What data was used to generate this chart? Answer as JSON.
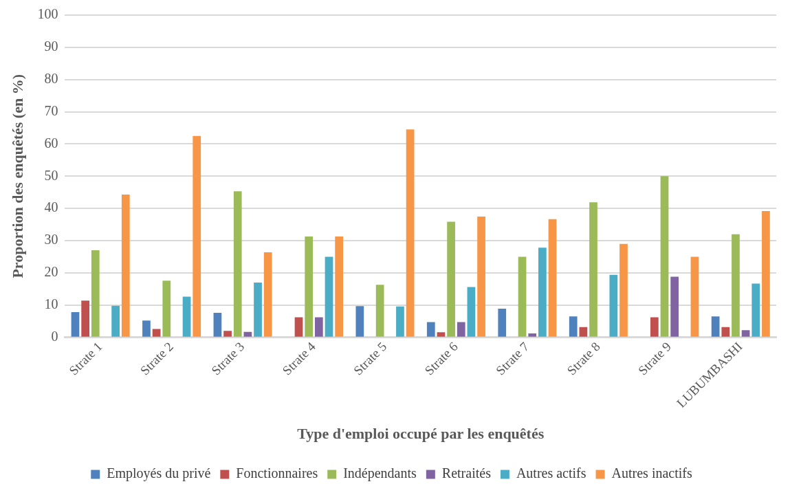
{
  "chart_data": {
    "type": "bar",
    "xlabel": "Type d'emploi occupé par les enquêtés",
    "ylabel": "Proportion des enquêtés (en %)",
    "categories": [
      "Strate 1",
      "Strate 2",
      "Strate 3",
      "Strate 4",
      "Strate 5",
      "Strate 6",
      "Strate 7",
      "Strate 8",
      "Strate 9",
      "LUBUMBASHI"
    ],
    "series": [
      {
        "name": "Employés du privé",
        "color": "#4f81bd",
        "values": [
          7.8,
          5.2,
          7.6,
          0,
          9.7,
          4.7,
          8.9,
          6.5,
          0,
          6.5
        ]
      },
      {
        "name": "Fonctionnaires",
        "color": "#c0504d",
        "values": [
          11.4,
          2.6,
          2.0,
          6.2,
          0,
          1.6,
          0,
          3.2,
          6.2,
          3.2
        ]
      },
      {
        "name": "Indépendants",
        "color": "#9bbb59",
        "values": [
          27,
          17.6,
          45.3,
          31.3,
          16.3,
          35.9,
          25,
          41.9,
          50,
          32
        ]
      },
      {
        "name": "Retraités",
        "color": "#8064a2",
        "values": [
          0,
          0,
          1.7,
          6.2,
          0,
          4.7,
          1.2,
          0,
          18.8,
          2.2
        ]
      },
      {
        "name": "Autres actifs",
        "color": "#4bacc6",
        "values": [
          9.8,
          12.6,
          17,
          25,
          9.6,
          15.6,
          27.8,
          19.4,
          0,
          16.7
        ]
      },
      {
        "name": "Autres inactifs",
        "color": "#f79646",
        "values": [
          44.3,
          62.5,
          26.4,
          31.3,
          64.5,
          37.5,
          36.7,
          29,
          25,
          39.2
        ]
      }
    ],
    "ylim": [
      0,
      100
    ],
    "yticks": [
      0,
      10,
      20,
      30,
      40,
      50,
      60,
      70,
      80,
      90,
      100
    ],
    "grid": "y",
    "legend": "bottom"
  }
}
